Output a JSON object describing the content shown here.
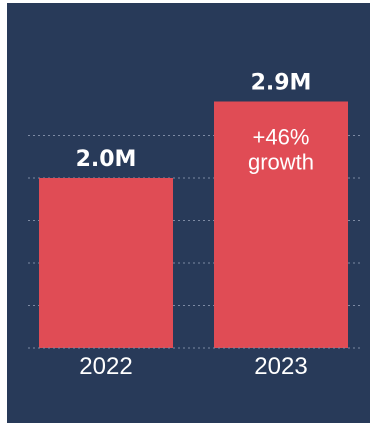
{
  "chart_data": {
    "type": "bar",
    "categories": [
      "2022",
      "2023"
    ],
    "values": [
      2.0,
      2.9
    ],
    "data_labels": [
      "2.0M",
      "2.9M"
    ],
    "annotation": {
      "bar_index": 1,
      "lines": [
        "+46%",
        "growth"
      ]
    },
    "ylim": [
      0,
      3.3
    ],
    "grid": true,
    "gridline_values": [
      0.5,
      1.0,
      1.5,
      2.0,
      2.5
    ],
    "colors": {
      "background": "#283a59",
      "bar": "#e04c55",
      "grid": "#7d8aa3",
      "text": "#ffffff"
    }
  }
}
